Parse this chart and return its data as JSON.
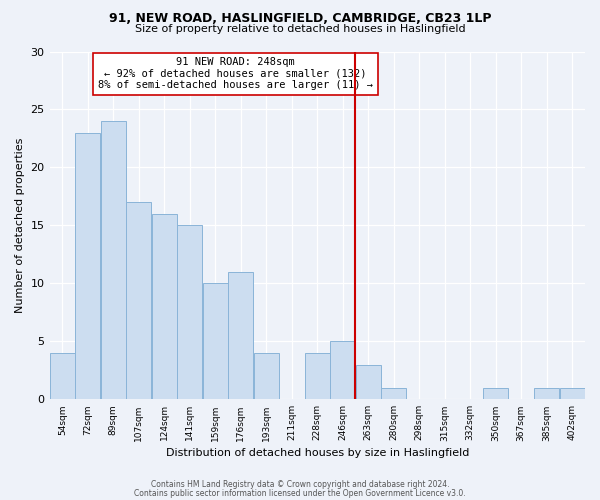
{
  "title_line1": "91, NEW ROAD, HASLINGFIELD, CAMBRIDGE, CB23 1LP",
  "title_line2": "Size of property relative to detached houses in Haslingfield",
  "xlabel": "Distribution of detached houses by size in Haslingfield",
  "ylabel": "Number of detached properties",
  "bar_labels": [
    "54sqm",
    "72sqm",
    "89sqm",
    "107sqm",
    "124sqm",
    "141sqm",
    "159sqm",
    "176sqm",
    "193sqm",
    "211sqm",
    "228sqm",
    "246sqm",
    "263sqm",
    "280sqm",
    "298sqm",
    "315sqm",
    "332sqm",
    "350sqm",
    "367sqm",
    "385sqm",
    "402sqm"
  ],
  "bar_values": [
    4,
    23,
    24,
    17,
    16,
    15,
    10,
    11,
    4,
    0,
    4,
    5,
    3,
    1,
    0,
    0,
    0,
    1,
    0,
    1,
    1
  ],
  "bar_color": "#ccddf0",
  "bar_edge_color": "#8ab4d8",
  "vline_index": 11,
  "vline_color": "#cc0000",
  "annotation_title": "91 NEW ROAD: 248sqm",
  "annotation_line1": "← 92% of detached houses are smaller (132)",
  "annotation_line2": "8% of semi-detached houses are larger (11) →",
  "annotation_box_color": "#ffffff",
  "annotation_box_edge_color": "#cc0000",
  "ylim": [
    0,
    30
  ],
  "yticks": [
    0,
    5,
    10,
    15,
    20,
    25,
    30
  ],
  "footer_line1": "Contains HM Land Registry data © Crown copyright and database right 2024.",
  "footer_line2": "Contains public sector information licensed under the Open Government Licence v3.0.",
  "background_color": "#eef2f9"
}
